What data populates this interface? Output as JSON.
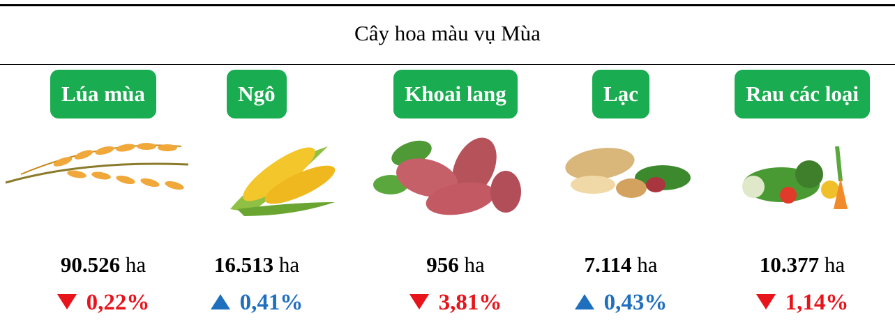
{
  "header": {
    "title": "Cây hoa màu vụ Mùa"
  },
  "items": [
    {
      "name": "Lúa mùa",
      "value": "90.526",
      "unit": "ha",
      "direction": "down",
      "change": "0,22%",
      "color": "#e8141b"
    },
    {
      "name": "Ngô",
      "value": "16.513",
      "unit": "ha",
      "direction": "up",
      "change": "0,41%",
      "color": "#1f6fbf"
    },
    {
      "name": "Khoai lang",
      "value": "956",
      "unit": "ha",
      "direction": "down",
      "change": "3,81%",
      "color": "#e8141b"
    },
    {
      "name": "Lạc",
      "value": "7.114",
      "unit": "ha",
      "direction": "up",
      "change": "0,43%",
      "color": "#1f6fbf"
    },
    {
      "name": "Rau các loại",
      "value": "10.377",
      "unit": "ha",
      "direction": "down",
      "change": "1,14%",
      "color": "#e8141b"
    }
  ]
}
